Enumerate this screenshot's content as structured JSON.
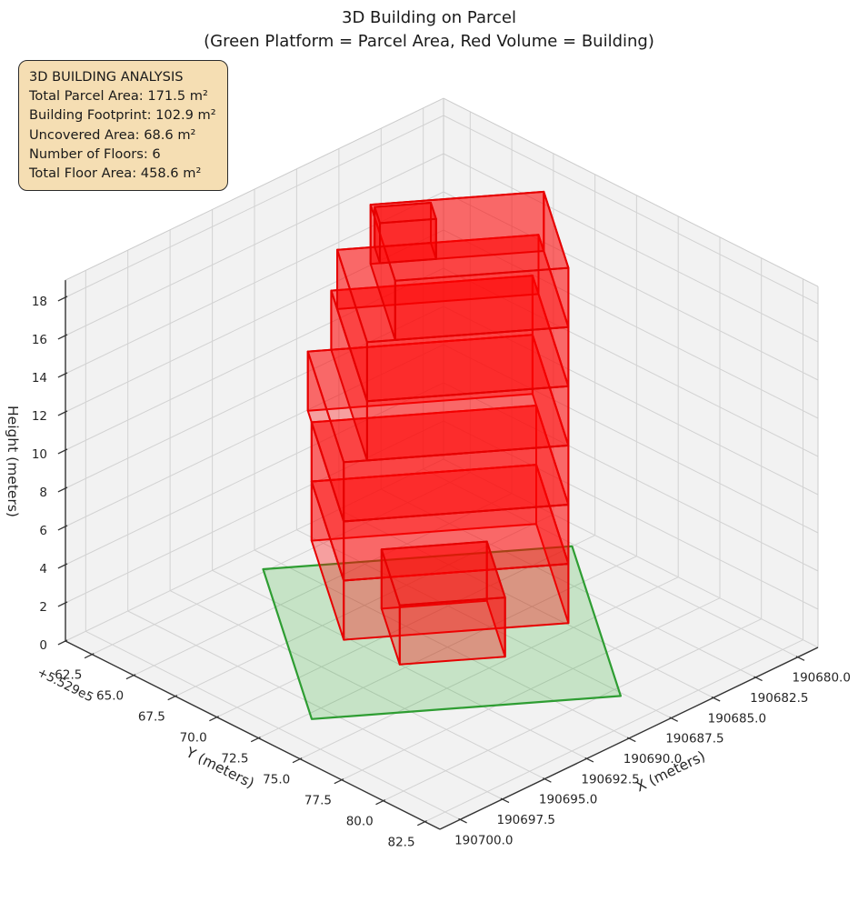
{
  "figure": {
    "title": "3D Building on Parcel",
    "subtitle": "(Green Platform = Parcel Area, Red Volume = Building)"
  },
  "info_box": {
    "bg_color": "#f5deb3",
    "border_color": "#2b2b2b",
    "text_color": "#1a1a1a",
    "lines": [
      "3D BUILDING ANALYSIS",
      "Total Parcel Area: 171.5 m²",
      "Building Footprint: 102.9 m²",
      "Uncovered Area: 68.6 m²",
      "Number of Floors: 6",
      "Total Floor Area: 458.6 m²"
    ]
  },
  "chart_data": {
    "type": "3d-building-plot",
    "title": "3D Building on Parcel",
    "subtitle": "(Green Platform = Parcel Area, Red Volume = Building)",
    "view": {
      "elev_deg": 30,
      "azim_deg": -60
    },
    "x_axis": {
      "label": "X (meters)",
      "range": [
        190678.8,
        190701.2
      ],
      "ticks": [
        190680,
        190682.5,
        190685,
        190687.5,
        190690,
        190692.5,
        190695,
        190697.5,
        190700
      ],
      "tick_labels": [
        "190680.0",
        "190682.5",
        "190685.0",
        "190687.5",
        "190690.0",
        "190692.5",
        "190695.0",
        "190697.5",
        "190700.0"
      ]
    },
    "y_axis": {
      "label": "Y (meters)",
      "offset_text": "+5.529e5",
      "range": [
        552960.9,
        552983.4
      ],
      "ticks": [
        552962.5,
        552965,
        552967.5,
        552970,
        552972.5,
        552975,
        552977.5,
        552980,
        552982.5
      ],
      "tick_labels": [
        "62.5",
        "65.0",
        "67.5",
        "70.0",
        "72.5",
        "75.0",
        "77.5",
        "80.0",
        "82.5"
      ]
    },
    "z_axis": {
      "label": "Height (meters)",
      "range": [
        0,
        18.9
      ],
      "ticks": [
        0,
        2,
        4,
        6,
        8,
        10,
        12,
        14,
        16,
        18
      ],
      "tick_labels": [
        "0",
        "2",
        "4",
        "6",
        "8",
        "10",
        "12",
        "14",
        "16",
        "18"
      ]
    },
    "parcel": {
      "name": "Parcel Area",
      "area_m2": 171.5,
      "fill_color": "#00a000",
      "fill_alpha": 0.18,
      "edge_color": "#2e9d32",
      "edge_width": 2.2,
      "corners_xy": [
        [
          190698.44,
          552972.9
        ],
        [
          190687.7,
          552980.57
        ],
        [
          190680.15,
          552969.99
        ],
        [
          190690.89,
          552962.32
        ]
      ]
    },
    "building": {
      "name": "Building",
      "footprint_m2": 102.9,
      "floors_count": 6,
      "floor_height_m": 3.1,
      "total_height_m": 18.6,
      "face_color": "#ff0000",
      "face_alpha": 0.34,
      "edge_color": "#e60000",
      "edge_width": 2,
      "origin_xy": [
        190692.7,
        552969.0
      ],
      "axis_a": [
        -0.814,
        0.581
      ],
      "axis_b": [
        -0.581,
        -0.814
      ],
      "boxes": [
        {
          "name": "floor-1",
          "a": [
            0,
            9.6
          ],
          "b": [
            0,
            8.6
          ],
          "z": [
            0,
            3.1
          ]
        },
        {
          "name": "floor-2",
          "a": [
            0,
            9.6
          ],
          "b": [
            0,
            8.6
          ],
          "z": [
            3.1,
            6.2
          ]
        },
        {
          "name": "floor-3",
          "a": [
            0,
            9.6
          ],
          "b": [
            0,
            9.6
          ],
          "z": [
            6.2,
            9.3
          ]
        },
        {
          "name": "floor-4",
          "a": [
            1.0,
            9.6
          ],
          "b": [
            0,
            9.6
          ],
          "z": [
            9.3,
            12.4
          ]
        },
        {
          "name": "floor-5",
          "a": [
            1.0,
            9.6
          ],
          "b": [
            0,
            8.0
          ],
          "z": [
            12.4,
            15.5
          ]
        },
        {
          "name": "floor-6",
          "a": [
            2.2,
            9.6
          ],
          "b": [
            0,
            6.6
          ],
          "z": [
            15.5,
            18.6
          ]
        },
        {
          "name": "roof-annex",
          "a": [
            2.6,
            5.0
          ],
          "b": [
            6.6,
            8.0
          ],
          "z": [
            15.5,
            17.6
          ]
        },
        {
          "name": "ground-annex",
          "a": [
            2.0,
            6.5
          ],
          "b": [
            -2.45,
            2.4
          ],
          "z": [
            0,
            3.1
          ]
        }
      ]
    },
    "style": {
      "pane_color": "#f2f2f2",
      "pane_edge_color": "#cbcbcb",
      "grid_color": "#d2d2d2",
      "spine_color": "#333333",
      "tick_color": "#333333",
      "text_color": "#262626",
      "tick_font_px": 13.5,
      "label_font_px": 15.5
    }
  }
}
